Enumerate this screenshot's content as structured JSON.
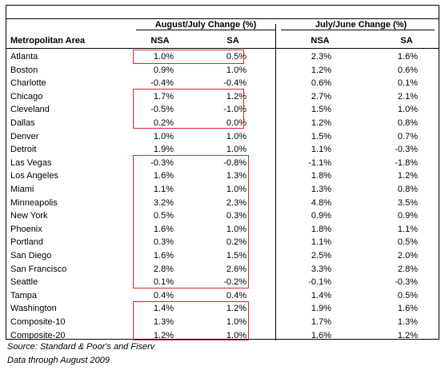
{
  "table": {
    "header_group_1": "August/July Change (%)",
    "header_group_2": "July/June Change (%)",
    "col_area": "Metropolitan Area",
    "col_nsa_1": "NSA",
    "col_sa_1": "SA",
    "col_nsa_2": "NSA",
    "col_sa_2": "SA",
    "rows": [
      {
        "area": "Atlanta",
        "aj_nsa": "1.0%",
        "aj_sa": "0.5%",
        "jj_nsa": "2.3%",
        "jj_sa": "1.6%"
      },
      {
        "area": "Boston",
        "aj_nsa": "0.9%",
        "aj_sa": "1.0%",
        "jj_nsa": "1.2%",
        "jj_sa": "0.6%"
      },
      {
        "area": "Charlotte",
        "aj_nsa": "-0.4%",
        "aj_sa": "-0.4%",
        "jj_nsa": "0.6%",
        "jj_sa": "0.1%"
      },
      {
        "area": "Chicago",
        "aj_nsa": "1.7%",
        "aj_sa": "1.2%",
        "jj_nsa": "2.7%",
        "jj_sa": "2.1%"
      },
      {
        "area": "Cleveland",
        "aj_nsa": "-0.5%",
        "aj_sa": "-1.0%",
        "jj_nsa": "1.5%",
        "jj_sa": "1.0%"
      },
      {
        "area": "Dallas",
        "aj_nsa": "0.2%",
        "aj_sa": "0.0%",
        "jj_nsa": "1.2%",
        "jj_sa": "0.8%"
      },
      {
        "area": "Denver",
        "aj_nsa": "1.0%",
        "aj_sa": "1.0%",
        "jj_nsa": "1.5%",
        "jj_sa": "0.7%"
      },
      {
        "area": "Detroit",
        "aj_nsa": "1.9%",
        "aj_sa": "1.0%",
        "jj_nsa": "1.1%",
        "jj_sa": "-0.3%"
      },
      {
        "area": "Las Vegas",
        "aj_nsa": "-0.3%",
        "aj_sa": "-0.8%",
        "jj_nsa": "-1.1%",
        "jj_sa": "-1.8%"
      },
      {
        "area": "Los Angeles",
        "aj_nsa": "1.6%",
        "aj_sa": "1.3%",
        "jj_nsa": "1.8%",
        "jj_sa": "1.2%"
      },
      {
        "area": "Miami",
        "aj_nsa": "1.1%",
        "aj_sa": "1.0%",
        "jj_nsa": "1.3%",
        "jj_sa": "0.8%"
      },
      {
        "area": "Minneapolis",
        "aj_nsa": "3.2%",
        "aj_sa": "2.3%",
        "jj_nsa": "4.8%",
        "jj_sa": "3.5%"
      },
      {
        "area": "New York",
        "aj_nsa": "0.5%",
        "aj_sa": "0.3%",
        "jj_nsa": "0.9%",
        "jj_sa": "0.9%"
      },
      {
        "area": "Phoenix",
        "aj_nsa": "1.6%",
        "aj_sa": "1.0%",
        "jj_nsa": "1.8%",
        "jj_sa": "1.1%"
      },
      {
        "area": "Portland",
        "aj_nsa": "0.3%",
        "aj_sa": "0.2%",
        "jj_nsa": "1.1%",
        "jj_sa": "0.5%"
      },
      {
        "area": "San Diego",
        "aj_nsa": "1.6%",
        "aj_sa": "1.5%",
        "jj_nsa": "2.5%",
        "jj_sa": "2.0%"
      },
      {
        "area": "San Francisco",
        "aj_nsa": "2.8%",
        "aj_sa": "2.6%",
        "jj_nsa": "3.3%",
        "jj_sa": "2.8%"
      },
      {
        "area": "Seattle",
        "aj_nsa": "0.1%",
        "aj_sa": "-0.2%",
        "jj_nsa": "-0.1%",
        "jj_sa": "-0.3%"
      },
      {
        "area": "Tampa",
        "aj_nsa": "0.4%",
        "aj_sa": "0.4%",
        "jj_nsa": "1.4%",
        "jj_sa": "0.5%"
      },
      {
        "area": "Washington",
        "aj_nsa": "1.4%",
        "aj_sa": "1.2%",
        "jj_nsa": "1.9%",
        "jj_sa": "1.6%"
      },
      {
        "area": "Composite-10",
        "aj_nsa": "1.3%",
        "aj_sa": "1.0%",
        "jj_nsa": "1.7%",
        "jj_sa": "1.3%"
      },
      {
        "area": "Composite-20",
        "aj_nsa": "1.2%",
        "aj_sa": "1.0%",
        "jj_nsa": "1.6%",
        "jj_sa": "1.2%"
      }
    ],
    "highlight_color": "#d9262e"
  },
  "footer": {
    "source": "Source: Standard & Poor's and Fiserv",
    "data_through": "Data through August 2009"
  }
}
